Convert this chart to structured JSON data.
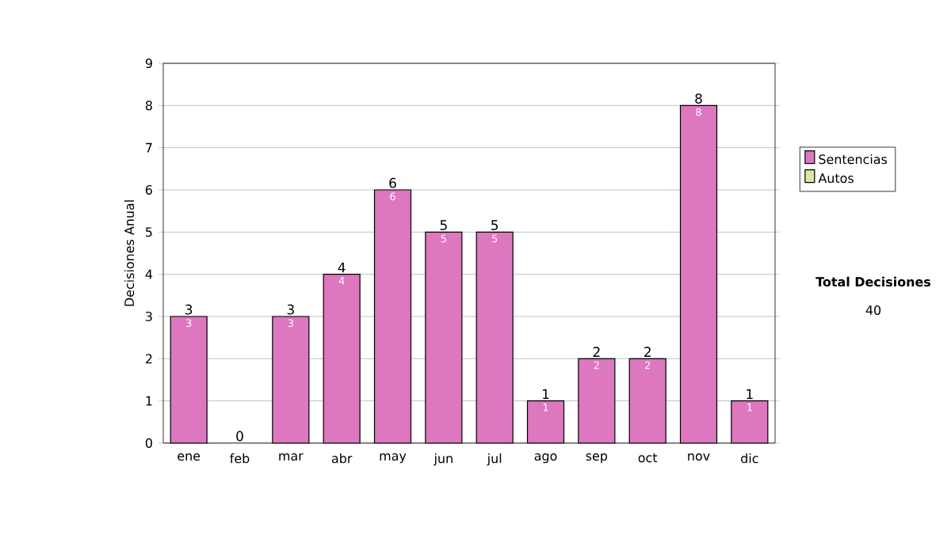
{
  "chart_data": {
    "type": "bar",
    "stacked": true,
    "ylabel": "Decisiones Anual",
    "categories": [
      "ene",
      "feb",
      "mar",
      "abr",
      "may",
      "jun",
      "jul",
      "ago",
      "sep",
      "oct",
      "nov",
      "dic"
    ],
    "series": [
      {
        "name": "Sentencias",
        "color": "#dd77c0",
        "values": [
          3,
          0,
          3,
          4,
          6,
          5,
          5,
          1,
          2,
          2,
          8,
          1
        ],
        "value_labels": [
          "3",
          null,
          "3",
          "4",
          "6",
          "5",
          "5",
          "1",
          "2",
          "2",
          "8",
          "1"
        ]
      },
      {
        "name": "Autos",
        "color": "#d8e8a0",
        "values": [
          0,
          0,
          0,
          0,
          0,
          0,
          0,
          0,
          0,
          0,
          0,
          0
        ]
      }
    ],
    "totals": [
      "3",
      "0",
      "3",
      "4",
      "6",
      "5",
      "5",
      "1",
      "2",
      "2",
      "8",
      "1"
    ],
    "ylim": [
      0,
      9
    ],
    "yticks": [
      0,
      1,
      2,
      3,
      4,
      5,
      6,
      7,
      8,
      9
    ],
    "grid": "y",
    "legend": "right",
    "annotations": [
      "Total Decisiones",
      "40"
    ]
  }
}
